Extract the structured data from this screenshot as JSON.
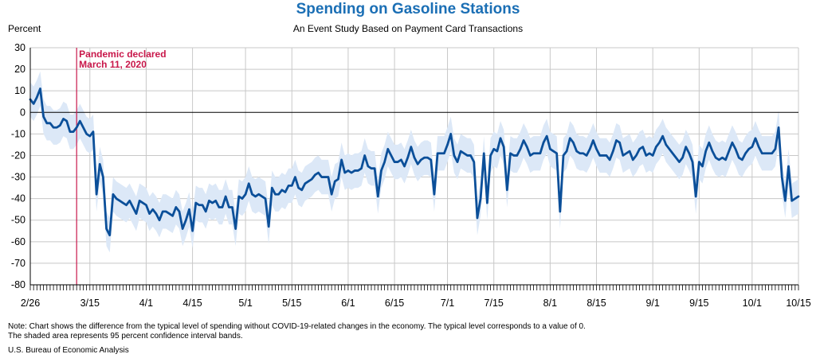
{
  "colors": {
    "title": "#1b6fb5",
    "line": "#0b4f99",
    "band": "#dce8f7",
    "annotation": "#c8174a",
    "grid": "#c8c8c8",
    "text": "#000000"
  },
  "note": {
    "line1": "Note: Chart shows the difference from the typical level of spending without COVID-19-related changes in the economy. The typical level corresponds to a value of 0.",
    "line2": "The shaded area represents 95 percent confidence interval bands."
  },
  "source": "U.S. Bureau of Economic Analysis",
  "chart_data": {
    "type": "line",
    "title": "Spending on Gasoline Stations",
    "subtitle": "An Event Study Based on Payment Card Transactions",
    "ylabel": "Percent",
    "ylim": [
      -80,
      30
    ],
    "yticks": [
      30,
      20,
      10,
      0,
      -10,
      -20,
      -30,
      -40,
      -50,
      -60,
      -70,
      -80
    ],
    "x_range": [
      "2020-02-26",
      "2020-10-15"
    ],
    "xtick_labels": [
      {
        "date": "2020-02-26",
        "label": "2/26"
      },
      {
        "date": "2020-03-15",
        "label": "3/15"
      },
      {
        "date": "2020-04-01",
        "label": "4/1"
      },
      {
        "date": "2020-04-15",
        "label": "4/15"
      },
      {
        "date": "2020-05-01",
        "label": "5/1"
      },
      {
        "date": "2020-05-15",
        "label": "5/15"
      },
      {
        "date": "2020-06-01",
        "label": "6/1"
      },
      {
        "date": "2020-06-15",
        "label": "6/15"
      },
      {
        "date": "2020-07-01",
        "label": "7/1"
      },
      {
        "date": "2020-07-15",
        "label": "7/15"
      },
      {
        "date": "2020-08-01",
        "label": "8/1"
      },
      {
        "date": "2020-08-15",
        "label": "8/15"
      },
      {
        "date": "2020-09-01",
        "label": "9/1"
      },
      {
        "date": "2020-09-15",
        "label": "9/15"
      },
      {
        "date": "2020-10-01",
        "label": "10/1"
      },
      {
        "date": "2020-10-15",
        "label": "10/15"
      }
    ],
    "grid": true,
    "zero_line": true,
    "annotation": {
      "date": "2020-03-11",
      "line1": "Pandemic declared",
      "line2": "March 11, 2020"
    },
    "band_halfwidth": 8,
    "series": [
      {
        "values": [
          [
            "2020-02-26",
            6
          ],
          [
            "2020-02-27",
            4
          ],
          [
            "2020-02-28",
            7
          ],
          [
            "2020-02-29",
            11
          ],
          [
            "2020-03-01",
            -2
          ],
          [
            "2020-03-02",
            -5
          ],
          [
            "2020-03-03",
            -5
          ],
          [
            "2020-03-04",
            -7
          ],
          [
            "2020-03-05",
            -7
          ],
          [
            "2020-03-06",
            -6
          ],
          [
            "2020-03-07",
            -3
          ],
          [
            "2020-03-08",
            -4
          ],
          [
            "2020-03-09",
            -9
          ],
          [
            "2020-03-10",
            -9
          ],
          [
            "2020-03-11",
            -7
          ],
          [
            "2020-03-12",
            -4
          ],
          [
            "2020-03-13",
            -7
          ],
          [
            "2020-03-14",
            -10
          ],
          [
            "2020-03-15",
            -11
          ],
          [
            "2020-03-16",
            -9
          ],
          [
            "2020-03-17",
            -38
          ],
          [
            "2020-03-18",
            -24
          ],
          [
            "2020-03-19",
            -30
          ],
          [
            "2020-03-20",
            -54
          ],
          [
            "2020-03-21",
            -57
          ],
          [
            "2020-03-22",
            -38
          ],
          [
            "2020-03-23",
            -40
          ],
          [
            "2020-03-24",
            -41
          ],
          [
            "2020-03-25",
            -42
          ],
          [
            "2020-03-26",
            -43
          ],
          [
            "2020-03-27",
            -41
          ],
          [
            "2020-03-28",
            -44
          ],
          [
            "2020-03-29",
            -47
          ],
          [
            "2020-03-30",
            -41
          ],
          [
            "2020-03-31",
            -42
          ],
          [
            "2020-04-01",
            -43
          ],
          [
            "2020-04-02",
            -47
          ],
          [
            "2020-04-03",
            -45
          ],
          [
            "2020-04-04",
            -47
          ],
          [
            "2020-04-05",
            -50
          ],
          [
            "2020-04-06",
            -46
          ],
          [
            "2020-04-07",
            -46
          ],
          [
            "2020-04-08",
            -47
          ],
          [
            "2020-04-09",
            -48
          ],
          [
            "2020-04-10",
            -44
          ],
          [
            "2020-04-11",
            -46
          ],
          [
            "2020-04-12",
            -54
          ],
          [
            "2020-04-13",
            -50
          ],
          [
            "2020-04-14",
            -45
          ],
          [
            "2020-04-15",
            -55
          ],
          [
            "2020-04-16",
            -42
          ],
          [
            "2020-04-17",
            -43
          ],
          [
            "2020-04-18",
            -43
          ],
          [
            "2020-04-19",
            -46
          ],
          [
            "2020-04-20",
            -41
          ],
          [
            "2020-04-21",
            -42
          ],
          [
            "2020-04-22",
            -41
          ],
          [
            "2020-04-23",
            -44
          ],
          [
            "2020-04-24",
            -44
          ],
          [
            "2020-04-25",
            -39
          ],
          [
            "2020-04-26",
            -44
          ],
          [
            "2020-04-27",
            -44
          ],
          [
            "2020-04-28",
            -54
          ],
          [
            "2020-04-29",
            -39
          ],
          [
            "2020-04-30",
            -40
          ],
          [
            "2020-05-01",
            -38
          ],
          [
            "2020-05-02",
            -33
          ],
          [
            "2020-05-03",
            -38
          ],
          [
            "2020-05-04",
            -39
          ],
          [
            "2020-05-05",
            -38
          ],
          [
            "2020-05-06",
            -39
          ],
          [
            "2020-05-07",
            -40
          ],
          [
            "2020-05-08",
            -53
          ],
          [
            "2020-05-09",
            -35
          ],
          [
            "2020-05-10",
            -38
          ],
          [
            "2020-05-11",
            -38
          ],
          [
            "2020-05-12",
            -36
          ],
          [
            "2020-05-13",
            -37
          ],
          [
            "2020-05-14",
            -34
          ],
          [
            "2020-05-15",
            -34
          ],
          [
            "2020-05-16",
            -30
          ],
          [
            "2020-05-17",
            -35
          ],
          [
            "2020-05-18",
            -36
          ],
          [
            "2020-05-19",
            -33
          ],
          [
            "2020-05-20",
            -32
          ],
          [
            "2020-05-21",
            -31
          ],
          [
            "2020-05-22",
            -29
          ],
          [
            "2020-05-23",
            -28
          ],
          [
            "2020-05-24",
            -30
          ],
          [
            "2020-05-25",
            -30
          ],
          [
            "2020-05-26",
            -30
          ],
          [
            "2020-05-27",
            -38
          ],
          [
            "2020-05-28",
            -32
          ],
          [
            "2020-05-29",
            -31
          ],
          [
            "2020-05-30",
            -22
          ],
          [
            "2020-05-31",
            -28
          ],
          [
            "2020-06-01",
            -27
          ],
          [
            "2020-06-02",
            -28
          ],
          [
            "2020-06-03",
            -27
          ],
          [
            "2020-06-04",
            -27
          ],
          [
            "2020-06-05",
            -26
          ],
          [
            "2020-06-06",
            -20
          ],
          [
            "2020-06-07",
            -25
          ],
          [
            "2020-06-08",
            -26
          ],
          [
            "2020-06-09",
            -26
          ],
          [
            "2020-06-10",
            -39
          ],
          [
            "2020-06-11",
            -27
          ],
          [
            "2020-06-12",
            -23
          ],
          [
            "2020-06-13",
            -17
          ],
          [
            "2020-06-14",
            -20
          ],
          [
            "2020-06-15",
            -23
          ],
          [
            "2020-06-16",
            -23
          ],
          [
            "2020-06-17",
            -22
          ],
          [
            "2020-06-18",
            -25
          ],
          [
            "2020-06-19",
            -21
          ],
          [
            "2020-06-20",
            -16
          ],
          [
            "2020-06-21",
            -21
          ],
          [
            "2020-06-22",
            -24
          ],
          [
            "2020-06-23",
            -22
          ],
          [
            "2020-06-24",
            -21
          ],
          [
            "2020-06-25",
            -21
          ],
          [
            "2020-06-26",
            -22
          ],
          [
            "2020-06-27",
            -38
          ],
          [
            "2020-06-28",
            -19
          ],
          [
            "2020-06-29",
            -19
          ],
          [
            "2020-06-30",
            -19
          ],
          [
            "2020-07-01",
            -15
          ],
          [
            "2020-07-02",
            -10
          ],
          [
            "2020-07-03",
            -20
          ],
          [
            "2020-07-04",
            -23
          ],
          [
            "2020-07-05",
            -18
          ],
          [
            "2020-07-06",
            -19
          ],
          [
            "2020-07-07",
            -20
          ],
          [
            "2020-07-08",
            -20
          ],
          [
            "2020-07-09",
            -23
          ],
          [
            "2020-07-10",
            -49
          ],
          [
            "2020-07-11",
            -40
          ],
          [
            "2020-07-12",
            -19
          ],
          [
            "2020-07-13",
            -42
          ],
          [
            "2020-07-14",
            -20
          ],
          [
            "2020-07-15",
            -17
          ],
          [
            "2020-07-16",
            -18
          ],
          [
            "2020-07-17",
            -12
          ],
          [
            "2020-07-18",
            -16
          ],
          [
            "2020-07-19",
            -36
          ],
          [
            "2020-07-20",
            -19
          ],
          [
            "2020-07-21",
            -20
          ],
          [
            "2020-07-22",
            -20
          ],
          [
            "2020-07-23",
            -17
          ],
          [
            "2020-07-24",
            -13
          ],
          [
            "2020-07-25",
            -16
          ],
          [
            "2020-07-26",
            -20
          ],
          [
            "2020-07-27",
            -19
          ],
          [
            "2020-07-28",
            -19
          ],
          [
            "2020-07-29",
            -19
          ],
          [
            "2020-07-30",
            -14
          ],
          [
            "2020-07-31",
            -11
          ],
          [
            "2020-08-01",
            -17
          ],
          [
            "2020-08-02",
            -18
          ],
          [
            "2020-08-03",
            -19
          ],
          [
            "2020-08-04",
            -46
          ],
          [
            "2020-08-05",
            -20
          ],
          [
            "2020-08-06",
            -18
          ],
          [
            "2020-08-07",
            -12
          ],
          [
            "2020-08-08",
            -14
          ],
          [
            "2020-08-09",
            -18
          ],
          [
            "2020-08-10",
            -19
          ],
          [
            "2020-08-11",
            -19
          ],
          [
            "2020-08-12",
            -20
          ],
          [
            "2020-08-13",
            -17
          ],
          [
            "2020-08-14",
            -13
          ],
          [
            "2020-08-15",
            -17
          ],
          [
            "2020-08-16",
            -20
          ],
          [
            "2020-08-17",
            -20
          ],
          [
            "2020-08-18",
            -20
          ],
          [
            "2020-08-19",
            -22
          ],
          [
            "2020-08-20",
            -18
          ],
          [
            "2020-08-21",
            -13
          ],
          [
            "2020-08-22",
            -14
          ],
          [
            "2020-08-23",
            -20
          ],
          [
            "2020-08-24",
            -19
          ],
          [
            "2020-08-25",
            -18
          ],
          [
            "2020-08-26",
            -22
          ],
          [
            "2020-08-27",
            -20
          ],
          [
            "2020-08-28",
            -17
          ],
          [
            "2020-08-29",
            -16
          ],
          [
            "2020-08-30",
            -20
          ],
          [
            "2020-08-31",
            -19
          ],
          [
            "2020-09-01",
            -20
          ],
          [
            "2020-09-02",
            -16
          ],
          [
            "2020-09-03",
            -14
          ],
          [
            "2020-09-04",
            -11
          ],
          [
            "2020-09-05",
            -15
          ],
          [
            "2020-09-06",
            -17
          ],
          [
            "2020-09-07",
            -19
          ],
          [
            "2020-09-08",
            -21
          ],
          [
            "2020-09-09",
            -23
          ],
          [
            "2020-09-10",
            -21
          ],
          [
            "2020-09-11",
            -16
          ],
          [
            "2020-09-12",
            -19
          ],
          [
            "2020-09-13",
            -23
          ],
          [
            "2020-09-14",
            -39
          ],
          [
            "2020-09-15",
            -23
          ],
          [
            "2020-09-16",
            -25
          ],
          [
            "2020-09-17",
            -18
          ],
          [
            "2020-09-18",
            -14
          ],
          [
            "2020-09-19",
            -18
          ],
          [
            "2020-09-20",
            -21
          ],
          [
            "2020-09-21",
            -22
          ],
          [
            "2020-09-22",
            -21
          ],
          [
            "2020-09-23",
            -22
          ],
          [
            "2020-09-24",
            -18
          ],
          [
            "2020-09-25",
            -14
          ],
          [
            "2020-09-26",
            -17
          ],
          [
            "2020-09-27",
            -21
          ],
          [
            "2020-09-28",
            -22
          ],
          [
            "2020-09-29",
            -19
          ],
          [
            "2020-09-30",
            -17
          ],
          [
            "2020-10-01",
            -16
          ],
          [
            "2020-10-02",
            -12
          ],
          [
            "2020-10-03",
            -16
          ],
          [
            "2020-10-04",
            -19
          ],
          [
            "2020-10-05",
            -19
          ],
          [
            "2020-10-06",
            -19
          ],
          [
            "2020-10-07",
            -19
          ],
          [
            "2020-10-08",
            -17
          ],
          [
            "2020-10-09",
            -7
          ],
          [
            "2020-10-10",
            -30
          ],
          [
            "2020-10-11",
            -41
          ],
          [
            "2020-10-12",
            -25
          ],
          [
            "2020-10-13",
            -41
          ],
          [
            "2020-10-14",
            -40
          ],
          [
            "2020-10-15",
            -39
          ]
        ]
      }
    ]
  }
}
